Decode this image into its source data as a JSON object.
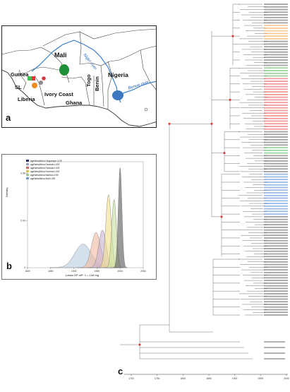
{
  "panel_a": {
    "letter": "a",
    "countries": [
      "Mali",
      "Guinea",
      "SL",
      "Liberia",
      "Ivory Coast",
      "Ghana",
      "Togo",
      "Benin",
      "Nigeria"
    ],
    "rivers": [
      "Niger river",
      "Benue river"
    ],
    "colors": {
      "land": "#ffffff",
      "border": "#333333",
      "river": "#3a7ec8",
      "mali_region": "#1f8f3a",
      "nigeria_region": "#3b78c0",
      "guinea_red": "#d83a3a",
      "guinea_green": "#3fbf4f",
      "sl_orange": "#f08a1e",
      "sl_gray": "#8a8a8a"
    }
  },
  "panel_b": {
    "letter": "b",
    "legend": [
      {
        "label": "ageWestAfrica Dinguiraye LIGE",
        "color": "#1f2f6a"
      },
      {
        "label": "ageWestAfrica Faranah LIGE",
        "color": "#9aa9c8"
      },
      {
        "label": "ageWestAfrica Faranah LIGE",
        "color": "#d95e5e"
      },
      {
        "label": "ageWestAfrica Kenema LIGE",
        "color": "#e6c34a"
      },
      {
        "label": "ageWestAfrica Bamba LIGE",
        "color": "#9ed28c"
      },
      {
        "label": "ageWestAfrica Mali LIGE",
        "color": "#6fa0d8"
      }
    ],
    "ylabel": "Density",
    "xlabel": "Lassa GP mP: 1 = 144 mg",
    "y_ticks": [
      "0.08",
      "0.04",
      "0"
    ],
    "x_ticks": [
      "1800",
      "1850",
      "1900",
      "1950",
      "2000",
      "2050"
    ]
  },
  "panel_c": {
    "letter": "c",
    "axis_ticks": [
      "1700",
      "1750",
      "1800",
      "1850",
      "1900",
      "1950",
      "2000"
    ]
  },
  "chart_data": {
    "type": "area",
    "title": "",
    "xlabel": "Lassa GP mP: 1 = 144 mg",
    "ylabel": "Density",
    "xlim": [
      1800,
      2050
    ],
    "ylim": [
      0,
      0.09
    ],
    "series": [
      {
        "name": "ageWestAfrica Dinguiraye LIGE",
        "peak_x": 2000,
        "peak_y": 0.085,
        "sd": 4,
        "color": "#555555"
      },
      {
        "name": "ageWestAfrica Faranah LIGE",
        "peak_x": 1987,
        "peak_y": 0.058,
        "sd": 5,
        "color": "#c8e0a0"
      },
      {
        "name": "ageWestAfrica Kenema LIGE",
        "peak_x": 1975,
        "peak_y": 0.062,
        "sd": 6,
        "color": "#f0e08a"
      },
      {
        "name": "ageWestAfrica Bamba LIGE",
        "peak_x": 1962,
        "peak_y": 0.032,
        "sd": 8,
        "color": "#c8b0d0"
      },
      {
        "name": "ageWestAfrica Faranah LIGE",
        "peak_x": 1948,
        "peak_y": 0.03,
        "sd": 10,
        "color": "#f0b8a0"
      },
      {
        "name": "ageWestAfrica Mali LIGE",
        "peak_x": 1920,
        "peak_y": 0.02,
        "sd": 18,
        "color": "#b8cce0"
      }
    ]
  }
}
